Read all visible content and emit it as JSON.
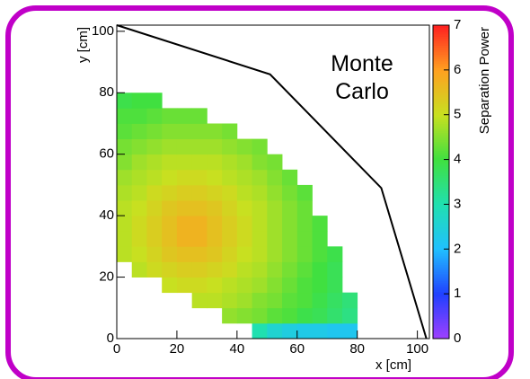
{
  "chart_data": {
    "type": "heatmap",
    "annotation": "Monte Carlo",
    "x_label": "x [cm]",
    "y_label": "y [cm]",
    "z_label": "Separation Power",
    "xlim": [
      0,
      104
    ],
    "ylim": [
      0,
      102
    ],
    "zlim": [
      0,
      7
    ],
    "xticks": [
      0,
      20,
      40,
      60,
      80,
      100
    ],
    "yticks": [
      0,
      20,
      40,
      60,
      80,
      100
    ],
    "zticks": [
      0,
      1,
      2,
      3,
      4,
      5,
      6,
      7
    ],
    "colorscale": [
      "#a040ff",
      "#2040ff",
      "#20c0ff",
      "#20e0b0",
      "#40e040",
      "#c8e020",
      "#ffa020",
      "#ff2020"
    ],
    "xbins": [
      0,
      5,
      10,
      15,
      20,
      25,
      30,
      35,
      40,
      45,
      50,
      55,
      60,
      65,
      70,
      75,
      80
    ],
    "ybins": [
      0,
      5,
      10,
      15,
      20,
      25,
      30,
      35,
      40,
      45,
      50,
      55,
      60,
      65,
      70,
      75,
      80
    ],
    "values": [
      [
        null,
        null,
        null,
        null,
        null,
        null,
        null,
        null,
        null,
        3.0,
        2.6,
        2.4,
        2.3,
        2.3,
        2.2,
        2.2
      ],
      [
        null,
        null,
        null,
        null,
        null,
        null,
        null,
        4.6,
        4.5,
        4.4,
        4.2,
        4.1,
        3.9,
        3.8,
        3.6,
        3.4
      ],
      [
        null,
        null,
        null,
        null,
        null,
        4.9,
        4.9,
        4.8,
        4.7,
        4.5,
        4.4,
        4.2,
        4.1,
        3.9,
        3.7,
        3.5
      ],
      [
        null,
        null,
        null,
        5.0,
        5.1,
        5.1,
        5.0,
        4.9,
        4.8,
        4.7,
        4.5,
        4.3,
        4.1,
        4.0,
        3.8,
        null
      ],
      [
        null,
        4.9,
        5.1,
        5.2,
        5.3,
        5.3,
        5.2,
        5.1,
        4.9,
        4.8,
        4.6,
        4.4,
        4.2,
        4.0,
        3.8,
        null
      ],
      [
        4.9,
        5.0,
        5.2,
        5.4,
        5.5,
        5.5,
        5.4,
        5.2,
        5.0,
        4.9,
        4.7,
        4.5,
        4.3,
        4.1,
        3.9,
        null
      ],
      [
        4.9,
        5.1,
        5.3,
        5.5,
        5.7,
        5.7,
        5.5,
        5.3,
        5.1,
        4.9,
        4.7,
        4.5,
        4.3,
        4.1,
        null,
        null
      ],
      [
        4.9,
        5.1,
        5.3,
        5.5,
        5.7,
        5.7,
        5.5,
        5.3,
        5.1,
        4.9,
        4.7,
        4.5,
        4.3,
        4.1,
        null,
        null
      ],
      [
        4.9,
        5.0,
        5.2,
        5.4,
        5.5,
        5.5,
        5.4,
        5.2,
        5.0,
        4.9,
        4.7,
        4.5,
        4.3,
        null,
        null,
        null
      ],
      [
        4.8,
        4.9,
        5.1,
        5.2,
        5.3,
        5.3,
        5.2,
        5.1,
        4.9,
        4.8,
        4.6,
        4.4,
        4.2,
        null,
        null,
        null
      ],
      [
        4.7,
        4.8,
        4.9,
        5.0,
        5.1,
        5.1,
        5.0,
        4.9,
        4.8,
        4.7,
        4.5,
        4.3,
        null,
        null,
        null,
        null
      ],
      [
        4.5,
        4.7,
        4.8,
        4.9,
        4.9,
        4.9,
        4.9,
        4.8,
        4.7,
        4.5,
        4.4,
        null,
        null,
        null,
        null,
        null
      ],
      [
        4.4,
        4.5,
        4.6,
        4.7,
        4.7,
        4.7,
        4.7,
        4.6,
        4.5,
        4.4,
        null,
        null,
        null,
        null,
        null,
        null
      ],
      [
        4.2,
        4.3,
        4.4,
        4.5,
        4.5,
        4.5,
        4.5,
        4.4,
        null,
        null,
        null,
        null,
        null,
        null,
        null,
        null
      ],
      [
        4.1,
        4.1,
        4.2,
        4.3,
        4.3,
        4.3,
        null,
        null,
        null,
        null,
        null,
        null,
        null,
        null,
        null,
        null
      ],
      [
        3.9,
        4.0,
        4.0,
        null,
        null,
        null,
        null,
        null,
        null,
        null,
        null,
        null,
        null,
        null,
        null,
        null
      ]
    ],
    "outline": {
      "x": [
        0,
        51,
        88,
        103
      ],
      "y": [
        102,
        86,
        49,
        0
      ]
    }
  }
}
